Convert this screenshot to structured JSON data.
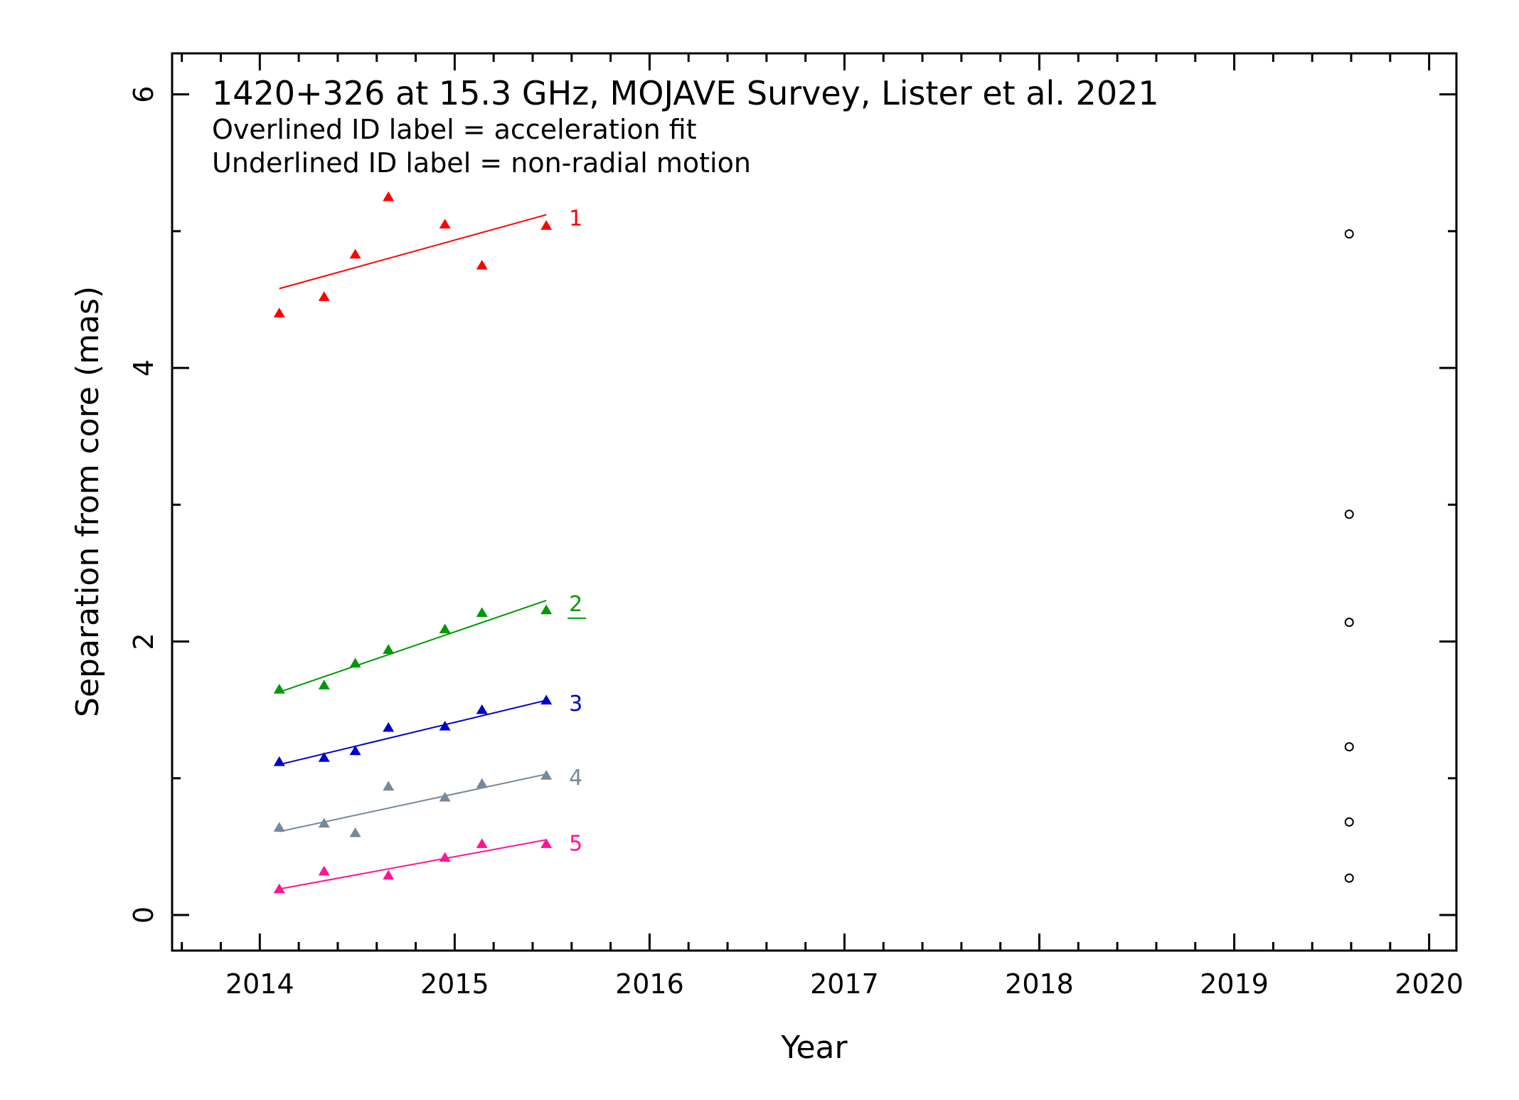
{
  "chart_data": {
    "type": "scatter",
    "title": "1420+326 at 15.3 GHz, MOJAVE Survey, Lister et al. 2021",
    "notes": [
      "Overlined ID label = acceleration fit",
      "Underlined ID label = non-radial motion"
    ],
    "xlabel": "Year",
    "ylabel": "Separation from core (mas)",
    "xlim": [
      2013.55,
      2020.14
    ],
    "ylim": [
      -0.26,
      6.3
    ],
    "x_ticks": [
      "2014",
      "2015",
      "2016",
      "2017",
      "2018",
      "2019",
      "2020"
    ],
    "y_ticks": [
      "0",
      "2",
      "4",
      "6"
    ],
    "grid": false,
    "series": [
      {
        "name": "1",
        "color": "#ff0000",
        "marker": "triangle",
        "underlined": false,
        "x": [
          2014.1,
          2014.33,
          2014.49,
          2014.66,
          2014.95,
          2015.14,
          2015.47
        ],
        "y": [
          4.4,
          4.52,
          4.83,
          5.25,
          5.05,
          4.75,
          5.04
        ],
        "fit": [
          [
            2014.1,
            4.58
          ],
          [
            2015.47,
            5.12
          ]
        ]
      },
      {
        "name": "2",
        "color": "#009900",
        "marker": "triangle",
        "underlined": true,
        "x": [
          2014.1,
          2014.33,
          2014.49,
          2014.66,
          2014.95,
          2015.14,
          2015.47
        ],
        "y": [
          1.65,
          1.68,
          1.84,
          1.94,
          2.09,
          2.21,
          2.23
        ],
        "fit": [
          [
            2014.1,
            1.63
          ],
          [
            2015.47,
            2.3
          ]
        ]
      },
      {
        "name": "3",
        "color": "#0000cc",
        "marker": "triangle",
        "underlined": false,
        "x": [
          2014.1,
          2014.33,
          2014.49,
          2014.66,
          2014.95,
          2015.14,
          2015.47
        ],
        "y": [
          1.12,
          1.15,
          1.2,
          1.37,
          1.38,
          1.5,
          1.57
        ],
        "fit": [
          [
            2014.1,
            1.1
          ],
          [
            2015.47,
            1.57
          ]
        ]
      },
      {
        "name": "4",
        "color": "#778899",
        "marker": "triangle",
        "underlined": false,
        "x": [
          2014.1,
          2014.33,
          2014.49,
          2014.66,
          2014.95,
          2015.14,
          2015.47
        ],
        "y": [
          0.64,
          0.67,
          0.6,
          0.94,
          0.86,
          0.96,
          1.02
        ],
        "fit": [
          [
            2014.1,
            0.61
          ],
          [
            2015.47,
            1.03
          ]
        ]
      },
      {
        "name": "5",
        "color": "#ff1493",
        "marker": "triangle",
        "underlined": false,
        "x": [
          2014.1,
          2014.33,
          2014.66,
          2014.95,
          2015.14,
          2015.47
        ],
        "y": [
          0.19,
          0.32,
          0.29,
          0.42,
          0.52,
          0.52
        ],
        "fit": [
          [
            2014.1,
            0.19
          ],
          [
            2015.47,
            0.55
          ]
        ]
      },
      {
        "name": "",
        "color": "#000000",
        "marker": "open-circle",
        "x": [
          2019.59,
          2019.59,
          2019.59,
          2019.59,
          2019.59,
          2019.59
        ],
        "y": [
          4.98,
          2.93,
          2.14,
          1.23,
          0.68,
          0.27
        ]
      }
    ]
  }
}
